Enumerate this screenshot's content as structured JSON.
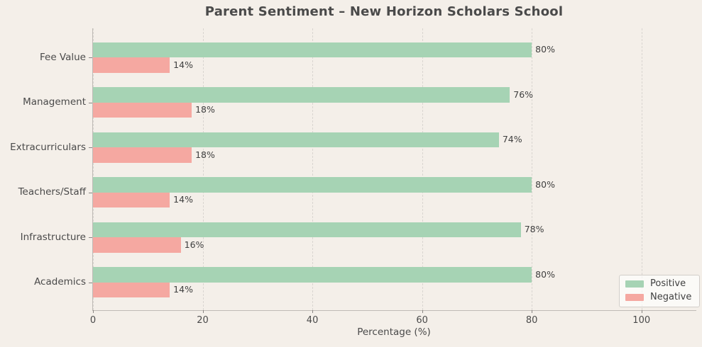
{
  "title": "Parent Sentiment – New Horizon Scholars School",
  "colors": {
    "background": "#f4efe9",
    "positive": "#a6d3b4",
    "negative": "#f5a8a1",
    "gridline": "#d9d5d0",
    "spine": "#bfbbb6",
    "text": "#4a4a4a",
    "value_label": "#3f3f3f"
  },
  "chart_data": {
    "type": "bar",
    "orientation": "horizontal",
    "title": "Parent Sentiment – New Horizon Scholars School",
    "categories": [
      "Fee Value",
      "Management",
      "Extracurriculars",
      "Teachers/Staff",
      "Infrastructure",
      "Academics"
    ],
    "series": [
      {
        "name": "Positive",
        "color": "#a6d3b4",
        "values": [
          80,
          76,
          74,
          80,
          78,
          80
        ]
      },
      {
        "name": "Negative",
        "color": "#f5a8a1",
        "values": [
          14,
          18,
          18,
          14,
          16,
          14
        ]
      }
    ],
    "value_labels": {
      "Positive": [
        "80%",
        "76%",
        "74%",
        "80%",
        "78%",
        "80%"
      ],
      "Negative": [
        "14%",
        "18%",
        "18%",
        "14%",
        "16%",
        "14%"
      ]
    },
    "xlabel": "Percentage (%)",
    "xlim": [
      0,
      110
    ],
    "xticks": [
      0,
      20,
      40,
      60,
      80,
      100
    ],
    "xtick_labels": [
      "0",
      "20",
      "40",
      "60",
      "80",
      "100"
    ],
    "grid": "vertical-dashed",
    "legend_position": "lower right",
    "legend": [
      "Positive",
      "Negative"
    ]
  }
}
